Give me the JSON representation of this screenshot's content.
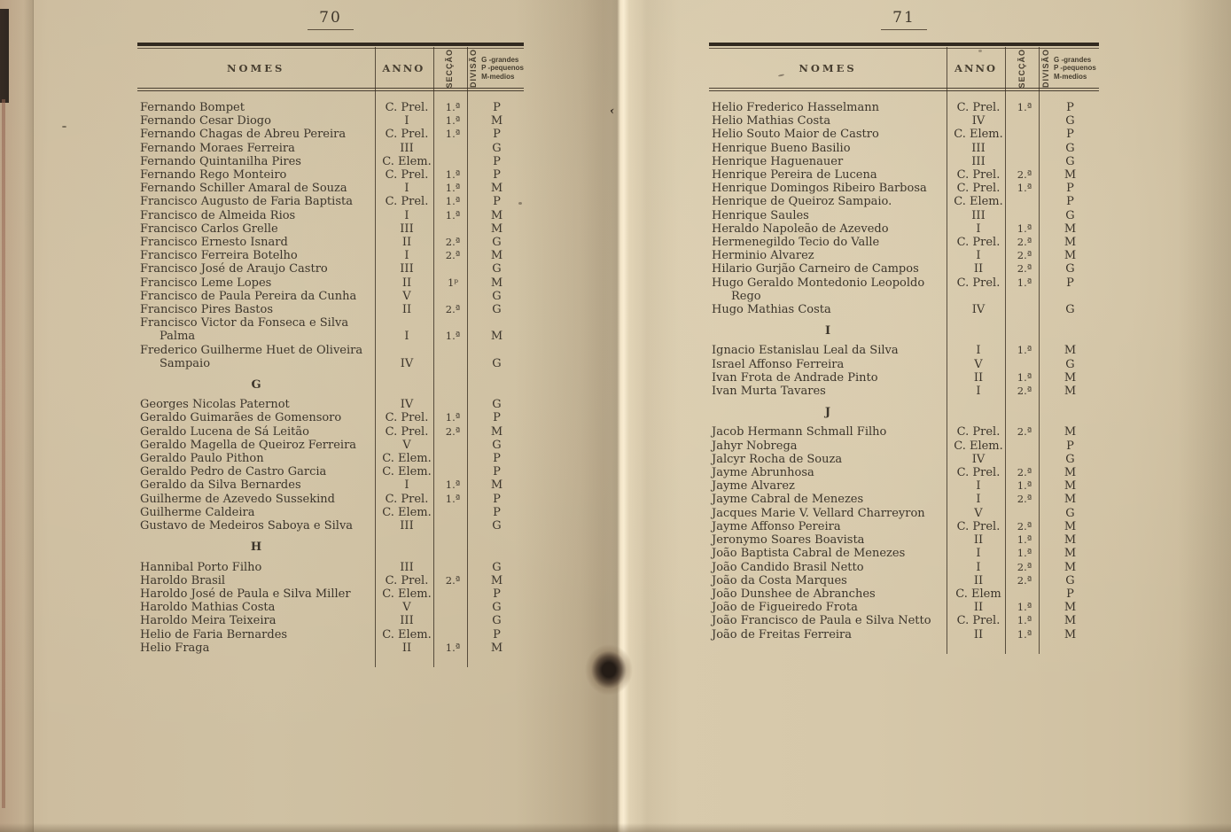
{
  "colors": {
    "paper": "#cfc1a3",
    "ink": "#3c352b",
    "rule": "#322a20",
    "gutter_highlight": "#f8ecd1",
    "black_edge": "#1a1815",
    "stain": "#241c16"
  },
  "legend": [
    "G -grandes",
    "P -pequenos",
    "M-medios"
  ],
  "pages": [
    {
      "number": "70",
      "header": {
        "nomes": "NOMES",
        "anno": "ANNO",
        "seccao": "SECÇÃO",
        "divisao": "DIVISÃO"
      },
      "entries": [
        {
          "name": "Fernando Bompet",
          "anno": "C. Prel.",
          "seccao": "1.ª",
          "divisao": "P"
        },
        {
          "name": "Fernando Cesar Diogo",
          "anno": "I",
          "seccao": "1.ª",
          "divisao": "M"
        },
        {
          "name": "Fernando Chagas de Abreu Pereira",
          "anno": "C. Prel.",
          "seccao": "1.ª",
          "divisao": "P"
        },
        {
          "name": "Fernando Moraes Ferreira",
          "anno": "III",
          "seccao": "",
          "divisao": "G"
        },
        {
          "name": "Fernando Quintanilha Pires",
          "anno": "C. Elem.",
          "seccao": "",
          "divisao": "P"
        },
        {
          "name": "Fernando Rego Monteiro",
          "anno": "C. Prel.",
          "seccao": "1.ª",
          "divisao": "P"
        },
        {
          "name": "Fernando Schiller Amaral de Souza",
          "anno": "I",
          "seccao": "1.ª",
          "divisao": "M"
        },
        {
          "name": "Francisco Augusto de Faria  Baptista",
          "anno": "C. Prel.",
          "seccao": "1.ª",
          "divisao": "P"
        },
        {
          "name": "Francisco de Almeida Rios",
          "anno": "I",
          "seccao": "1.ª",
          "divisao": "M"
        },
        {
          "name": "Francisco Carlos Grelle",
          "anno": "III",
          "seccao": "",
          "divisao": "M"
        },
        {
          "name": "Francisco Ernesto Isnard",
          "anno": "II",
          "seccao": "2.ª",
          "divisao": "G"
        },
        {
          "name": "Francisco Ferreira Botelho",
          "anno": "I",
          "seccao": "2.ª",
          "divisao": "M"
        },
        {
          "name": "Francisco José de Araujo Castro",
          "anno": "III",
          "seccao": "",
          "divisao": "G"
        },
        {
          "name": "Francisco Leme Lopes",
          "anno": "II",
          "seccao": "1ᵖ",
          "divisao": "M"
        },
        {
          "name": "Francisco de Paula Pereira da Cunha",
          "anno": "V",
          "seccao": "",
          "divisao": "G"
        },
        {
          "name": "Francisco Pires Bastos",
          "anno": "II",
          "seccao": "2.ª",
          "divisao": "G"
        },
        {
          "name": "Francisco Victor  da  Fonseca e Silva",
          "name2": "Palma",
          "align": "last",
          "anno": "I",
          "seccao": "1.ª",
          "divisao": "M"
        },
        {
          "name": "Frederico Guilherme Huet de Oliveira",
          "name2": "Sampaio",
          "align": "last",
          "anno": "IV",
          "seccao": "",
          "divisao": "G"
        },
        {
          "section": "G"
        },
        {
          "name": "Georges Nicolas Paternot",
          "anno": "IV",
          "seccao": "",
          "divisao": "G"
        },
        {
          "name": "Geraldo Guimarães de Gomensoro",
          "anno": "C. Prel.",
          "seccao": "1.ª",
          "divisao": "P"
        },
        {
          "name": "Geraldo Lucena de Sá Leitão",
          "anno": "C. Prel.",
          "seccao": "2.ª",
          "divisao": "M"
        },
        {
          "name": "Geraldo Magella de Queiroz Ferreira",
          "anno": "V",
          "seccao": "",
          "divisao": "G"
        },
        {
          "name": "Geraldo Paulo Pithon",
          "anno": "C. Elem.",
          "seccao": "",
          "divisao": "P"
        },
        {
          "name": "Geraldo Pedro de Castro Garcia",
          "anno": "C. Elem.",
          "seccao": "",
          "divisao": "P"
        },
        {
          "name": "Geraldo da Silva Bernardes",
          "anno": "I",
          "seccao": "1.ª",
          "divisao": "M"
        },
        {
          "name": "Guilherme de Azevedo Sussekind",
          "anno": "C. Prel.",
          "seccao": "1.ª",
          "divisao": "P"
        },
        {
          "name": "Guilherme Caldeira",
          "anno": "C. Elem.",
          "seccao": "",
          "divisao": "P"
        },
        {
          "name": "Gustavo de Medeiros Saboya e Silva",
          "anno": "III",
          "seccao": "",
          "divisao": "G"
        },
        {
          "section": "H"
        },
        {
          "name": "Hannibal Porto Filho",
          "anno": "III",
          "seccao": "",
          "divisao": "G"
        },
        {
          "name": "Haroldo Brasil",
          "anno": "C. Prel.",
          "seccao": "2.ª",
          "divisao": "M"
        },
        {
          "name": "Haroldo José de Paula e Silva Miller",
          "anno": "C. Elem.",
          "seccao": "",
          "divisao": "P"
        },
        {
          "name": "Haroldo Mathias Costa",
          "anno": "V",
          "seccao": "",
          "divisao": "G"
        },
        {
          "name": "Haroldo Meira Teixeira",
          "anno": "III",
          "seccao": "",
          "divisao": "G"
        },
        {
          "name": "Helio de Faria Bernardes",
          "anno": "C. Elem.",
          "seccao": "",
          "divisao": "P"
        },
        {
          "name": "Helio Fraga",
          "anno": "II",
          "seccao": "1.ª",
          "divisao": "M"
        }
      ]
    },
    {
      "number": "71",
      "header": {
        "nomes": "NOMES",
        "anno": "ANNO",
        "seccao": "SECÇÃO",
        "divisao": "DIVISÃO"
      },
      "entries": [
        {
          "name": "Helio Frederico Hasselmann",
          "anno": "C. Prel.",
          "seccao": "1.ª",
          "divisao": "P"
        },
        {
          "name": "Helio Mathias Costa",
          "anno": "IV",
          "seccao": "",
          "divisao": "G"
        },
        {
          "name": "Helio Souto Maior de Castro",
          "anno": "C. Elem.",
          "seccao": "",
          "divisao": "P"
        },
        {
          "name": "Henrique Bueno Basilio",
          "anno": "III",
          "seccao": "",
          "divisao": "G"
        },
        {
          "name": "Henrique Haguenauer",
          "anno": "III",
          "seccao": "",
          "divisao": "G"
        },
        {
          "name": "Henrique Pereira de Lucena",
          "anno": "C. Prel.",
          "seccao": "2.ª",
          "divisao": "M"
        },
        {
          "name": "Henrique Domingos Ribeiro Barbosa",
          "anno": "C. Prel.",
          "seccao": "1.ª",
          "divisao": "P"
        },
        {
          "name": "Henrique de Queiroz Sampaio.",
          "anno": "C. Elem.",
          "seccao": "",
          "divisao": "P"
        },
        {
          "name": "Henrique Saules",
          "anno": "III",
          "seccao": "",
          "divisao": "G"
        },
        {
          "name": "Heraldo Napoleão de Azevedo",
          "anno": "I",
          "seccao": "1.ª",
          "divisao": "M"
        },
        {
          "name": "Hermenegildo Tecio do Valle",
          "anno": "C. Prel.",
          "seccao": "2.ª",
          "divisao": "M"
        },
        {
          "name": "Herminio Alvarez",
          "anno": "I",
          "seccao": "2.ª",
          "divisao": "M"
        },
        {
          "name": "Hilario Gurjão Carneiro de Campos",
          "anno": "II",
          "seccao": "2.ª",
          "divisao": "G"
        },
        {
          "name": "Hugo Geraldo  Montedonio  Leopoldo",
          "name2": "Rego",
          "align": "first",
          "anno": "C. Prel.",
          "seccao": "1.ª",
          "divisao": "P"
        },
        {
          "name": "Hugo Mathias Costa",
          "anno": "IV",
          "seccao": "",
          "divisao": "G"
        },
        {
          "section": "I"
        },
        {
          "name": "Ignacio Estanislau Leal da Silva",
          "anno": "I",
          "seccao": "1.ª",
          "divisao": "M"
        },
        {
          "name": "Israel Affonso Ferreira",
          "anno": "V",
          "seccao": "",
          "divisao": "G"
        },
        {
          "name": "Ivan Frota de Andrade Pinto",
          "anno": "II",
          "seccao": "1.ª",
          "divisao": "M"
        },
        {
          "name": "Ivan Murta Tavares",
          "anno": "I",
          "seccao": "2.ª",
          "divisao": "M"
        },
        {
          "section": "J"
        },
        {
          "name": "Jacob Hermann Schmall Filho",
          "anno": "C. Prel.",
          "seccao": "2.ª",
          "divisao": "M"
        },
        {
          "name": "Jahyr Nobrega",
          "anno": "C. Elem.",
          "seccao": "",
          "divisao": "P"
        },
        {
          "name": "Jalcyr Rocha de Souza",
          "anno": "IV",
          "seccao": "",
          "divisao": "G"
        },
        {
          "name": "Jayme Abrunhosa",
          "anno": "C. Prel.",
          "seccao": "2.ª",
          "divisao": "M"
        },
        {
          "name": "Jayme Alvarez",
          "anno": "I",
          "seccao": "1.ª",
          "divisao": "M"
        },
        {
          "name": "Jayme Cabral de Menezes",
          "anno": "I",
          "seccao": "2.ª",
          "divisao": "M"
        },
        {
          "name": "Jacques Marie V. Vellard Charreyron",
          "anno": "V",
          "seccao": "",
          "divisao": "G"
        },
        {
          "name": "Jayme Affonso Pereira",
          "anno": "C. Prel.",
          "seccao": "2.ª",
          "divisao": "M"
        },
        {
          "name": "Jeronymo Soares Boavista",
          "anno": "II",
          "seccao": "1.ª",
          "divisao": "M"
        },
        {
          "name": "João Baptista Cabral de Menezes",
          "anno": "I",
          "seccao": "1.ª",
          "divisao": "M"
        },
        {
          "name": "João Candido Brasil Netto",
          "anno": "I",
          "seccao": "2.ª",
          "divisao": "M"
        },
        {
          "name": "João da Costa Marques",
          "anno": "II",
          "seccao": "2.ª",
          "divisao": "G"
        },
        {
          "name": "João Dunshee de Abranches",
          "anno": "C. Elem",
          "seccao": "",
          "divisao": "P"
        },
        {
          "name": "João de Figueiredo Frota",
          "anno": "II",
          "seccao": "1.ª",
          "divisao": "M"
        },
        {
          "name": "João Francisco de Paula e Silva Netto",
          "anno": "C. Prel.",
          "seccao": "1.ª",
          "divisao": "M"
        },
        {
          "name": "João de Freitas Ferreira",
          "anno": "II",
          "seccao": "1.ª",
          "divisao": "M"
        }
      ]
    }
  ]
}
